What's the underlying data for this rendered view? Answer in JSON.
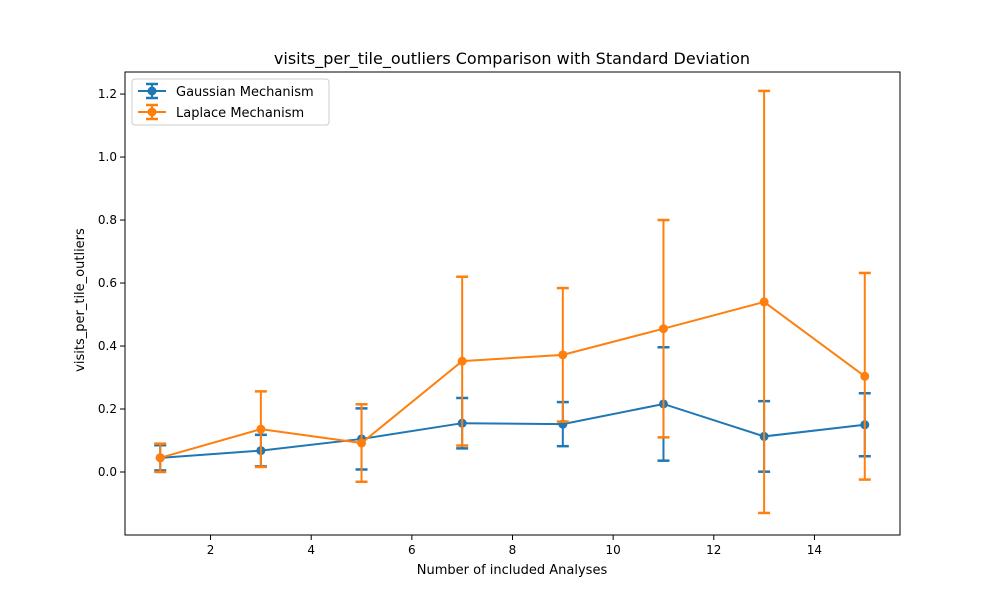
{
  "chart_data": {
    "type": "line",
    "title": "visits_per_tile_outliers Comparison with Standard Deviation",
    "xlabel": "Number of included Analyses",
    "ylabel": "visits_per_tile_outliers",
    "xlim": [
      0.3,
      15.7
    ],
    "ylim": [
      -0.2,
      1.27
    ],
    "x_ticks": [
      2,
      4,
      6,
      8,
      10,
      12,
      14
    ],
    "x_tick_labels": [
      "2",
      "4",
      "6",
      "8",
      "10",
      "12",
      "14"
    ],
    "y_ticks": [
      0.0,
      0.2,
      0.4,
      0.6,
      0.8,
      1.0,
      1.2
    ],
    "y_tick_labels": [
      "0.0",
      "0.2",
      "0.4",
      "0.6",
      "0.8",
      "1.0",
      "1.2"
    ],
    "grid": false,
    "legend_position": "top-left",
    "x": [
      1,
      3,
      5,
      7,
      9,
      11,
      13,
      15
    ],
    "series": [
      {
        "name": "Gaussian Mechanism",
        "color": "#1f77b4",
        "values": [
          0.045,
          0.068,
          0.105,
          0.155,
          0.152,
          0.216,
          0.113,
          0.15
        ],
        "std": [
          0.04,
          0.05,
          0.097,
          0.08,
          0.07,
          0.18,
          0.112,
          0.1
        ]
      },
      {
        "name": "Laplace Mechanism",
        "color": "#ff7f0e",
        "values": [
          0.045,
          0.136,
          0.092,
          0.352,
          0.372,
          0.455,
          0.54,
          0.304
        ],
        "std": [
          0.045,
          0.12,
          0.123,
          0.268,
          0.212,
          0.345,
          0.67,
          0.328
        ]
      }
    ]
  }
}
